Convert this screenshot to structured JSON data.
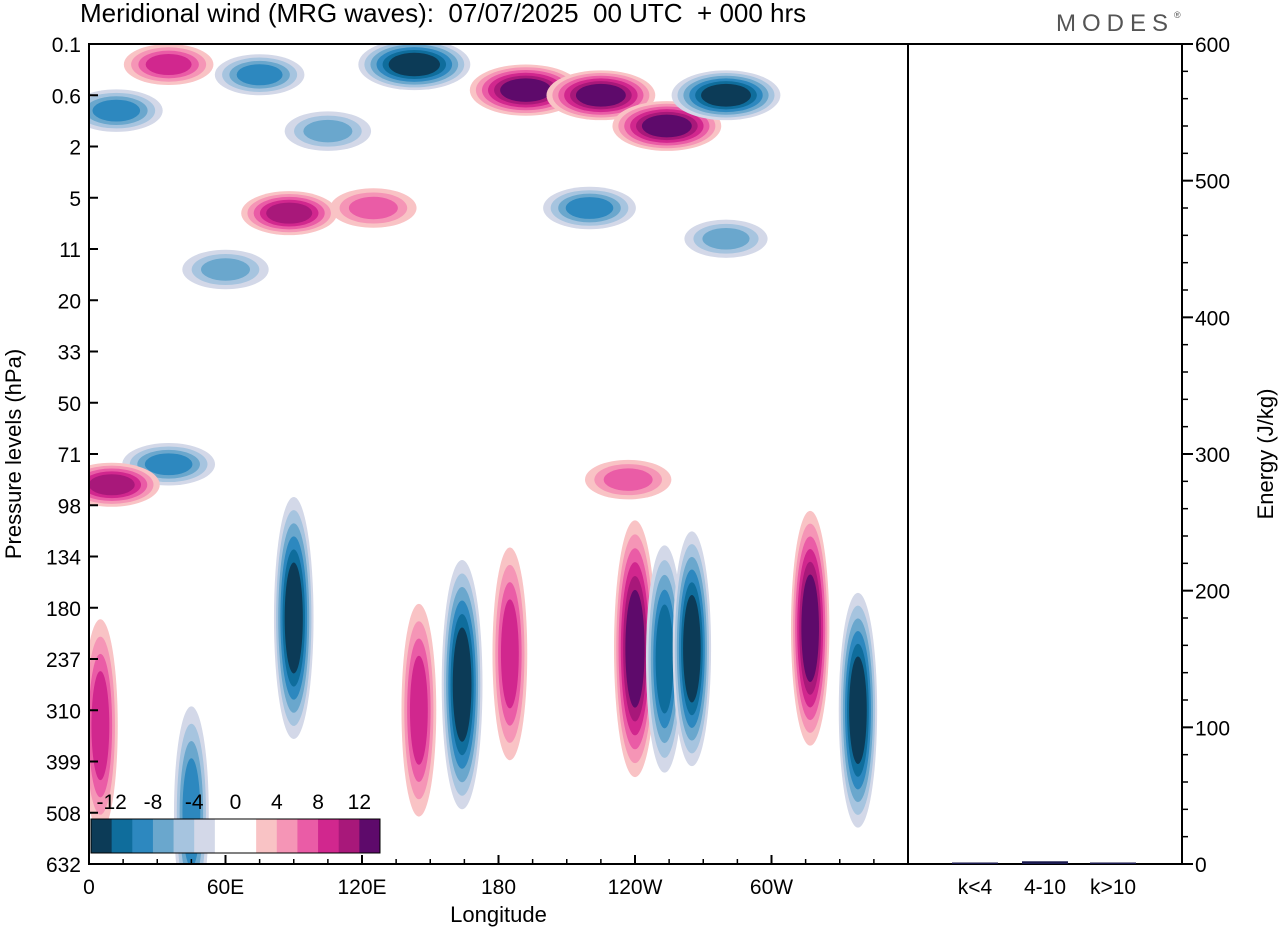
{
  "title": "Meridional wind (MRG waves):  07/07/2025  00 UTC  + 000 hrs",
  "logo": "MODES",
  "colors": {
    "neg": [
      "#0c3b57",
      "#0f6d9c",
      "#2d88bf",
      "#6aa7cd",
      "#a6c4df",
      "#d3d8e8"
    ],
    "pos": [
      "#f9c3c5",
      "#f595b6",
      "#ea5ca6",
      "#d1278e",
      "#a8187a",
      "#5e0a6b"
    ],
    "energy_bar": "#1a1a4e"
  },
  "chart_data": [
    {
      "type": "heatmap",
      "xlabel": "Longitude",
      "ylabel": "Pressure levels (hPa)",
      "xticks": [
        "0",
        "60E",
        "120E",
        "180",
        "120W",
        "60W"
      ],
      "x_tick_degrees": [
        0,
        60,
        120,
        180,
        240,
        300
      ],
      "xlim": [
        0,
        360
      ],
      "yticks": [
        "0.1",
        "0.6",
        "2",
        "5",
        "11",
        "20",
        "33",
        "50",
        "71",
        "98",
        "134",
        "180",
        "237",
        "310",
        "399",
        "508",
        "632"
      ],
      "colorbar": {
        "labels": [
          "-12",
          "-8",
          "-4",
          "0",
          "4",
          "8",
          "12"
        ],
        "levels": [
          -14,
          -12,
          -10,
          -8,
          -6,
          -4,
          -2,
          2,
          4,
          6,
          8,
          10,
          12
        ]
      },
      "features": [
        {
          "lon": 143,
          "level": 0.4,
          "value": -14
        },
        {
          "lon": 192,
          "level": 0.9,
          "value": 14
        },
        {
          "lon": 225,
          "level": 1.0,
          "value": 13
        },
        {
          "lon": 254,
          "level": 1.6,
          "value": 13
        },
        {
          "lon": 280,
          "level": 1.0,
          "value": -13
        },
        {
          "lon": 12,
          "level": 1.3,
          "value": -8
        },
        {
          "lon": 105,
          "level": 1.7,
          "value": -6
        },
        {
          "lon": 35,
          "level": 0.4,
          "value": 7
        },
        {
          "lon": 75,
          "level": 0.6,
          "value": -7
        },
        {
          "lon": 220,
          "level": 3.2,
          "value": -8
        },
        {
          "lon": 88,
          "level": 3.3,
          "value": 9
        },
        {
          "lon": 125,
          "level": 3.2,
          "value": 6
        },
        {
          "lon": 60,
          "level": 4.4,
          "value": -6
        },
        {
          "lon": 280,
          "level": 3.8,
          "value": -5
        },
        {
          "lon": 35,
          "level": 8.2,
          "value": -8
        },
        {
          "lon": 10,
          "level": 8.6,
          "value": 9
        },
        {
          "lon": 90,
          "level": 11.2,
          "value": -12
        },
        {
          "lon": 164,
          "level": 12.5,
          "value": -13
        },
        {
          "lon": 240,
          "level": 11.8,
          "value": 14
        },
        {
          "lon": 253,
          "level": 12.0,
          "value": -10
        },
        {
          "lon": 265,
          "level": 11.8,
          "value": -11
        },
        {
          "lon": 317,
          "level": 11.4,
          "value": 11
        },
        {
          "lon": 338,
          "level": 13.0,
          "value": -11
        },
        {
          "lon": 5,
          "level": 13.3,
          "value": 8
        },
        {
          "lon": 145,
          "level": 13.0,
          "value": 8
        },
        {
          "lon": 185,
          "level": 11.9,
          "value": 8
        },
        {
          "lon": 237,
          "level": 8.5,
          "value": 6
        },
        {
          "lon": 45,
          "level": 15.0,
          "value": -8
        }
      ]
    },
    {
      "type": "bar",
      "categories": [
        "k<4",
        "4-10",
        "k>10"
      ],
      "values": [
        0,
        2,
        0
      ],
      "ylabel": "Energy (J/kg)",
      "ylim": [
        0,
        600
      ],
      "yticks": [
        "0",
        "100",
        "200",
        "300",
        "400",
        "500",
        "600"
      ]
    }
  ]
}
